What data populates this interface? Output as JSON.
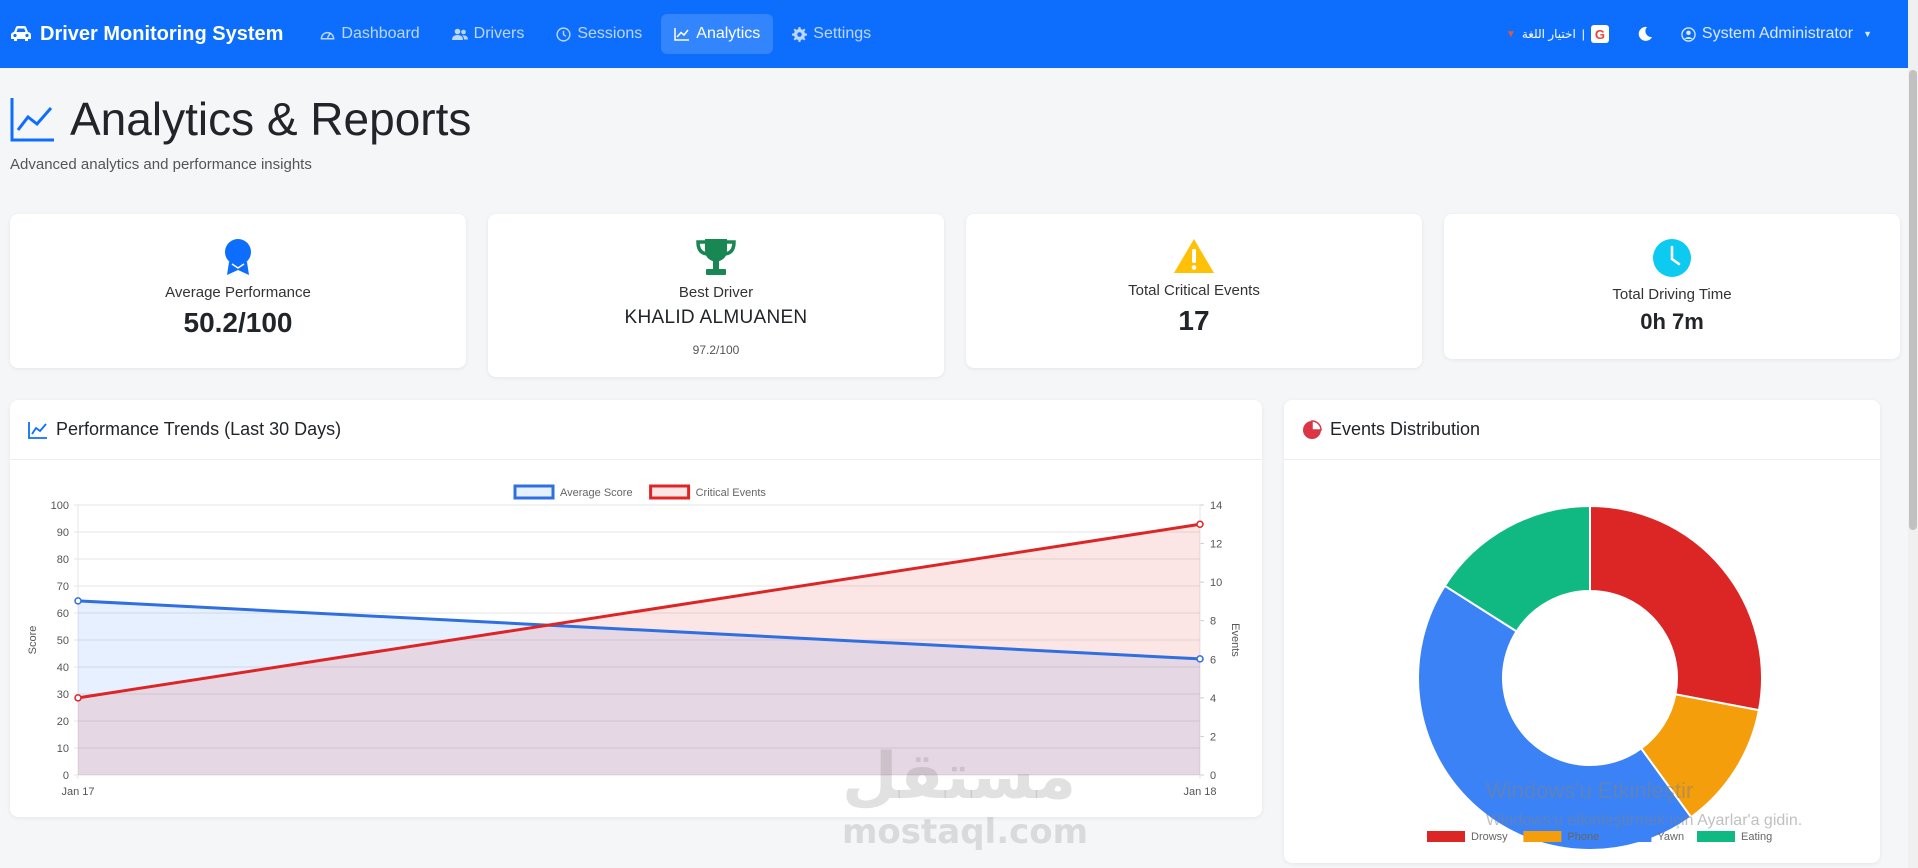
{
  "app": {
    "brand": "Driver Monitoring System",
    "nav": [
      {
        "label": "Dashboard",
        "icon": "gauge-icon"
      },
      {
        "label": "Drivers",
        "icon": "users-icon"
      },
      {
        "label": "Sessions",
        "icon": "clock-icon"
      },
      {
        "label": "Analytics",
        "icon": "chart-line-icon",
        "active": true
      },
      {
        "label": "Settings",
        "icon": "gear-icon"
      }
    ],
    "language_label": "اختيار اللغة",
    "user_label": "System Administrator",
    "colors": {
      "primary": "#0d6efd",
      "danger": "#dc2626",
      "warning": "#f59e0b",
      "success": "#10b981",
      "info": "#0dcaf0"
    }
  },
  "page": {
    "title": "Analytics & Reports",
    "subtitle": "Advanced analytics and performance insights"
  },
  "stats": [
    {
      "label": "Average Performance",
      "value": "50.2/100",
      "icon": "award-icon"
    },
    {
      "label": "Best Driver",
      "value": "KHALID ALMUANEN",
      "note": "97.2/100",
      "icon": "trophy-icon"
    },
    {
      "label": "Total Critical Events",
      "value": "17",
      "icon": "warning-icon"
    },
    {
      "label": "Total Driving Time",
      "value": "0h 7m",
      "icon": "clock-icon"
    }
  ],
  "trends_card": {
    "title": "Performance Trends (Last 30 Days)"
  },
  "events_card": {
    "title": "Events Distribution"
  },
  "watermark": {
    "brand_ar": "مستقل",
    "brand_en": "mostaql.com",
    "windows_line1": "Windows'u Etkinleştir",
    "windows_line2": "Windows'u etkinleştirmek için Ayarlar'a gidin."
  },
  "chart_data": [
    {
      "type": "line",
      "x": [
        "Jan 17",
        "Jan 18"
      ],
      "series": [
        {
          "name": "Average Score",
          "axis": "left",
          "color": "#2f6fe0",
          "values": [
            64.5,
            43
          ]
        },
        {
          "name": "Critical Events",
          "axis": "right",
          "color": "#dc2626",
          "values": [
            4,
            13
          ]
        }
      ],
      "ylabel": "Score",
      "y2label": "Events",
      "ylim": [
        0,
        100
      ],
      "y2lim": [
        0,
        14
      ],
      "yticks": [
        0,
        10,
        20,
        30,
        40,
        50,
        60,
        70,
        80,
        90,
        100
      ],
      "y2ticks": [
        0,
        2,
        4,
        6,
        8,
        10,
        12,
        14
      ],
      "grid": true,
      "legend": "top-center"
    },
    {
      "type": "pie",
      "labels": [
        "Drowsy",
        "Phone",
        "Yawn",
        "Eating"
      ],
      "values": [
        28,
        12,
        44,
        16
      ],
      "colors": [
        "#dc2626",
        "#f59e0b",
        "#3b82f6",
        "#10b981"
      ],
      "legend": "bottom"
    }
  ]
}
